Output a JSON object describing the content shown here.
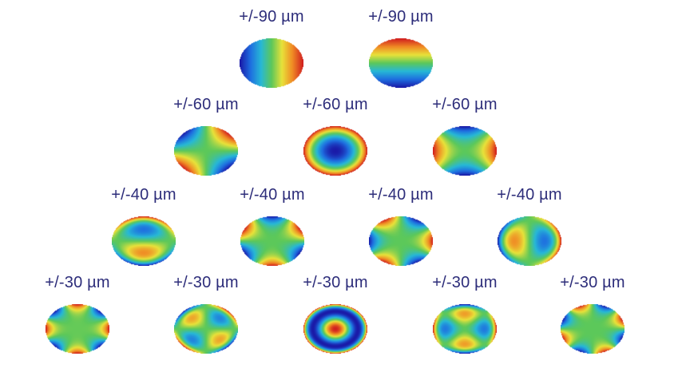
{
  "rows": [
    {
      "modes": [
        {
          "label": "+/-90 µm",
          "type": "tilt-x"
        },
        {
          "label": "+/-90 µm",
          "type": "tilt-y"
        }
      ]
    },
    {
      "modes": [
        {
          "label": "+/-60 µm",
          "type": "astig-oblique"
        },
        {
          "label": "+/-60 µm",
          "type": "defocus"
        },
        {
          "label": "+/-60 µm",
          "type": "astig-vertical"
        }
      ]
    },
    {
      "modes": [
        {
          "label": "+/-40 µm",
          "type": "coma-y"
        },
        {
          "label": "+/-40 µm",
          "type": "trefoil-a"
        },
        {
          "label": "+/-40 µm",
          "type": "trefoil-b"
        },
        {
          "label": "+/-40 µm",
          "type": "coma-x"
        }
      ]
    },
    {
      "modes": [
        {
          "label": "+/-30 µm",
          "type": "quadrafoil-a"
        },
        {
          "label": "+/-30 µm",
          "type": "secondary-astig-a"
        },
        {
          "label": "+/-30 µm",
          "type": "spherical"
        },
        {
          "label": "+/-30 µm",
          "type": "secondary-astig-b"
        },
        {
          "label": "+/-30 µm",
          "type": "quadrafoil-b"
        }
      ]
    }
  ],
  "colormap": [
    "#1a1aa8",
    "#1e6ee0",
    "#27b8d6",
    "#5cc85a",
    "#e8e23a",
    "#f08a24",
    "#d11f1f"
  ]
}
